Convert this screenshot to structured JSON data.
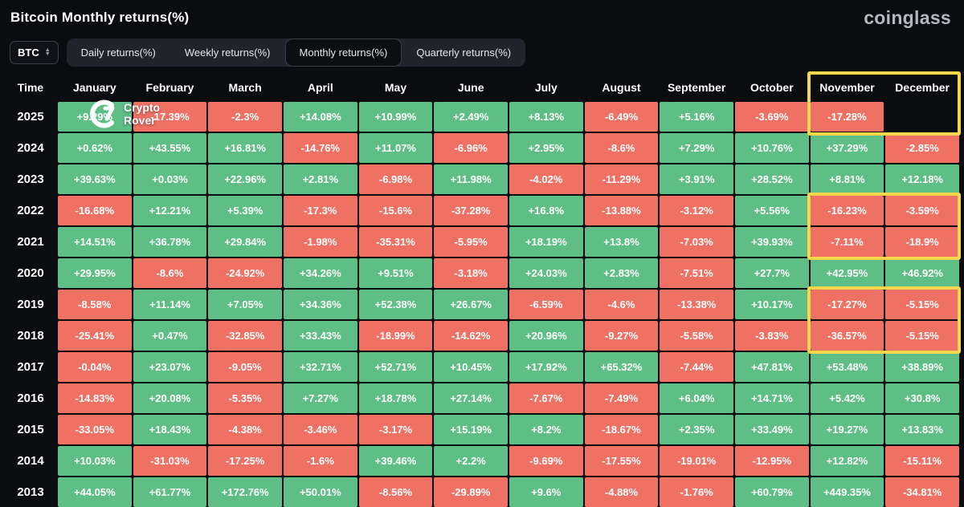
{
  "page": {
    "title": "Bitcoin Monthly returns(%)",
    "brand": "coinglass"
  },
  "controls": {
    "symbol": "BTC",
    "tabs": [
      {
        "label": "Daily returns(%)",
        "active": false
      },
      {
        "label": "Weekly returns(%)",
        "active": false
      },
      {
        "label": "Monthly returns(%)",
        "active": true
      },
      {
        "label": "Quarterly returns(%)",
        "active": false
      }
    ]
  },
  "watermark": {
    "label": "Crypto Rover"
  },
  "colors": {
    "positive": "#5ebe86",
    "negative": "#ee7164",
    "highlight": "#f6d64b",
    "background": "#0b0c0f"
  },
  "chart_data": {
    "type": "heatmap",
    "title": "Bitcoin Monthly returns(%)",
    "columns": [
      "Time",
      "January",
      "February",
      "March",
      "April",
      "May",
      "June",
      "July",
      "August",
      "September",
      "October",
      "November",
      "December"
    ],
    "rows": [
      {
        "year": "2025",
        "values": [
          "+9.29%",
          "-17.39%",
          "-2.3%",
          "+14.08%",
          "+10.99%",
          "+2.49%",
          "+8.13%",
          "-6.49%",
          "+5.16%",
          "-3.69%",
          "-17.28%",
          ""
        ]
      },
      {
        "year": "2024",
        "values": [
          "+0.62%",
          "+43.55%",
          "+16.81%",
          "-14.76%",
          "+11.07%",
          "-6.96%",
          "+2.95%",
          "-8.6%",
          "+7.29%",
          "+10.76%",
          "+37.29%",
          "-2.85%"
        ]
      },
      {
        "year": "2023",
        "values": [
          "+39.63%",
          "+0.03%",
          "+22.96%",
          "+2.81%",
          "-6.98%",
          "+11.98%",
          "-4.02%",
          "-11.29%",
          "+3.91%",
          "+28.52%",
          "+8.81%",
          "+12.18%"
        ]
      },
      {
        "year": "2022",
        "values": [
          "-16.68%",
          "+12.21%",
          "+5.39%",
          "-17.3%",
          "-15.6%",
          "-37.28%",
          "+16.8%",
          "-13.88%",
          "-3.12%",
          "+5.56%",
          "-16.23%",
          "-3.59%"
        ]
      },
      {
        "year": "2021",
        "values": [
          "+14.51%",
          "+36.78%",
          "+29.84%",
          "-1.98%",
          "-35.31%",
          "-5.95%",
          "+18.19%",
          "+13.8%",
          "-7.03%",
          "+39.93%",
          "-7.11%",
          "-18.9%"
        ]
      },
      {
        "year": "2020",
        "values": [
          "+29.95%",
          "-8.6%",
          "-24.92%",
          "+34.26%",
          "+9.51%",
          "-3.18%",
          "+24.03%",
          "+2.83%",
          "-7.51%",
          "+27.7%",
          "+42.95%",
          "+46.92%"
        ]
      },
      {
        "year": "2019",
        "values": [
          "-8.58%",
          "+11.14%",
          "+7.05%",
          "+34.36%",
          "+52.38%",
          "+26.67%",
          "-6.59%",
          "-4.6%",
          "-13.38%",
          "+10.17%",
          "-17.27%",
          "-5.15%"
        ]
      },
      {
        "year": "2018",
        "values": [
          "-25.41%",
          "+0.47%",
          "-32.85%",
          "+33.43%",
          "-18.99%",
          "-14.62%",
          "+20.96%",
          "-9.27%",
          "-5.58%",
          "-3.83%",
          "-36.57%",
          "-5.15%"
        ]
      },
      {
        "year": "2017",
        "values": [
          "-0.04%",
          "+23.07%",
          "-9.05%",
          "+32.71%",
          "+52.71%",
          "+10.45%",
          "+17.92%",
          "+65.32%",
          "-7.44%",
          "+47.81%",
          "+53.48%",
          "+38.89%"
        ]
      },
      {
        "year": "2016",
        "values": [
          "-14.83%",
          "+20.08%",
          "-5.35%",
          "+7.27%",
          "+18.78%",
          "+27.14%",
          "-7.67%",
          "-7.49%",
          "+6.04%",
          "+14.71%",
          "+5.42%",
          "+30.8%"
        ]
      },
      {
        "year": "2015",
        "values": [
          "-33.05%",
          "+18.43%",
          "-4.38%",
          "-3.46%",
          "-3.17%",
          "+15.19%",
          "+8.2%",
          "-18.67%",
          "+2.35%",
          "+33.49%",
          "+19.27%",
          "+13.83%"
        ]
      },
      {
        "year": "2014",
        "values": [
          "+10.03%",
          "-31.03%",
          "-17.25%",
          "-1.6%",
          "+39.46%",
          "+2.2%",
          "-9.69%",
          "-17.55%",
          "-19.01%",
          "-12.95%",
          "+12.82%",
          "-15.11%"
        ]
      },
      {
        "year": "2013",
        "values": [
          "+44.05%",
          "+61.77%",
          "+172.76%",
          "+50.01%",
          "-8.56%",
          "-29.89%",
          "+9.6%",
          "-4.88%",
          "-1.76%",
          "+60.79%",
          "+449.35%",
          "-34.81%"
        ]
      }
    ],
    "highlights": [
      {
        "columns": [
          "November",
          "December"
        ],
        "rows": [
          "header",
          "2025"
        ]
      },
      {
        "columns": [
          "November",
          "December"
        ],
        "rows": [
          "2022",
          "2021"
        ]
      },
      {
        "columns": [
          "November",
          "December"
        ],
        "rows": [
          "2019",
          "2018"
        ]
      }
    ],
    "legend": "green = positive monthly return, red = negative monthly return"
  }
}
